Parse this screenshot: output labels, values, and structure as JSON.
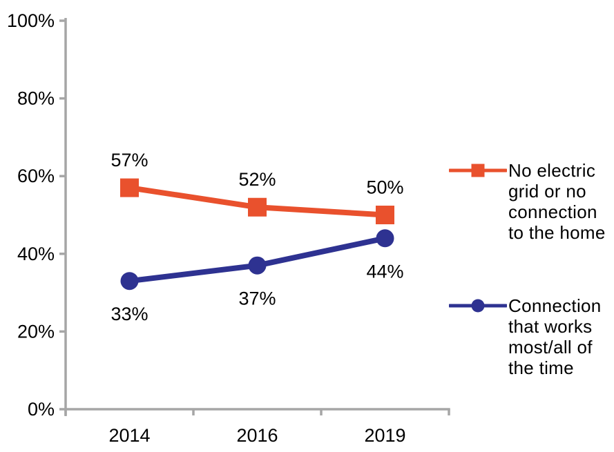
{
  "chart_data": {
    "type": "line",
    "title": "",
    "xlabel": "",
    "ylabel": "",
    "categories": [
      "2014",
      "2016",
      "2019"
    ],
    "series": [
      {
        "name": "No electric grid or no connection to the home",
        "values": [
          57,
          52,
          50
        ],
        "labels": [
          "57%",
          "52%",
          "50%"
        ],
        "color": "#E9512D",
        "marker": "square",
        "label_position": "above"
      },
      {
        "name": "Connection that works most/all of the time",
        "values": [
          33,
          37,
          44
        ],
        "labels": [
          "33%",
          "37%",
          "44%"
        ],
        "color": "#2E3291",
        "marker": "circle",
        "label_position": "below"
      }
    ],
    "ylim": [
      0,
      100
    ],
    "y_ticks": [
      {
        "value": 0,
        "label": "0%"
      },
      {
        "value": 20,
        "label": "20%"
      },
      {
        "value": 40,
        "label": "40%"
      },
      {
        "value": 60,
        "label": "60%"
      },
      {
        "value": 80,
        "label": "80%"
      },
      {
        "value": 100,
        "label": "100%"
      }
    ],
    "grid": false,
    "legend_position": "right",
    "axis_color": "#A6A6A6",
    "label_color": "#000000",
    "background": "#FFFFFF"
  },
  "legend": {
    "items": [
      {
        "label": "No electric grid or no connection to the home",
        "lines": [
          "No electric",
          "grid or no",
          "connection",
          "to the home"
        ]
      },
      {
        "label": "Connection that works most/all of the time",
        "lines": [
          "Connection",
          "that works",
          "most/all of",
          "the time"
        ]
      }
    ]
  }
}
